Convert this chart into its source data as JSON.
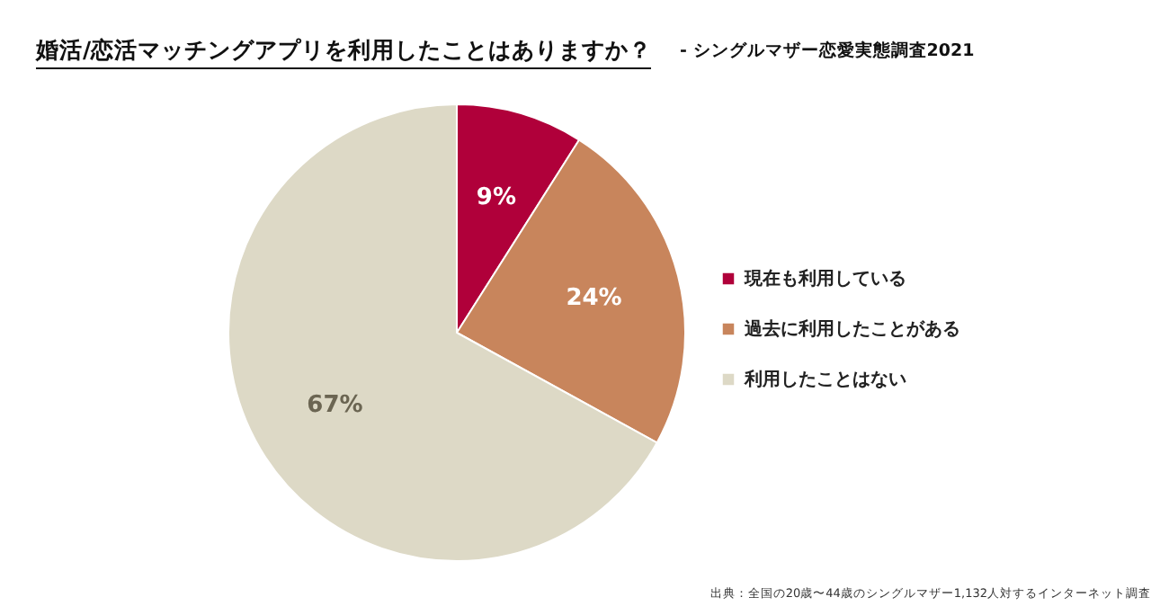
{
  "chart_data": {
    "type": "pie",
    "title": "婚活/恋活マッチングアプリを利用したことはありますか？",
    "subtitle": "- シングルマザー恋愛実態調査2021",
    "categories": [
      "現在も利用している",
      "過去に利用したことがある",
      "利用したことはない"
    ],
    "values": [
      9,
      24,
      67
    ],
    "colors": [
      "#b0003a",
      "#c8855c",
      "#ddd9c6"
    ],
    "value_labels": [
      "9%",
      "24%",
      "67%"
    ],
    "legend": "right",
    "annotations": [
      "出典：全国の20歳〜44歳のシングルマザー1,132人対するインターネット調査"
    ]
  }
}
